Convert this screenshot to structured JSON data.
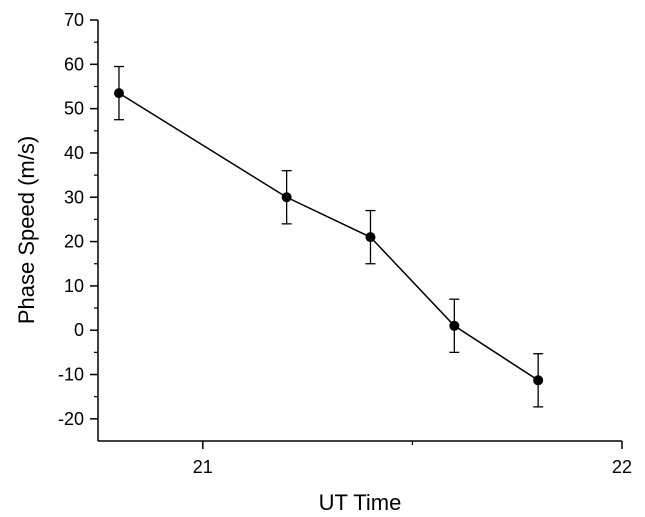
{
  "chart_data": {
    "type": "scatter",
    "title": "",
    "xlabel": "UT Time",
    "ylabel": "Phase Speed (m/s)",
    "xlim": [
      20.75,
      22
    ],
    "ylim": [
      -25,
      70
    ],
    "x_ticks": [
      21,
      22
    ],
    "x_tick_labels": [
      "21",
      "22"
    ],
    "x_minor_ticks": [
      21.5
    ],
    "y_ticks": [
      -20,
      -10,
      0,
      10,
      20,
      30,
      40,
      50,
      60,
      70
    ],
    "y_tick_labels": [
      "-20",
      "-10",
      "0",
      "10",
      "20",
      "30",
      "40",
      "50",
      "60",
      "70"
    ],
    "grid": false,
    "legend": "none",
    "series": [
      {
        "color": "#000000",
        "connected": true,
        "x": [
          20.8,
          21.2,
          21.4,
          21.6,
          21.8
        ],
        "y": [
          53.5,
          30.0,
          21.0,
          1.0,
          -11.3
        ],
        "error": [
          6.0,
          6.0,
          6.0,
          6.0,
          6.0
        ]
      }
    ]
  }
}
